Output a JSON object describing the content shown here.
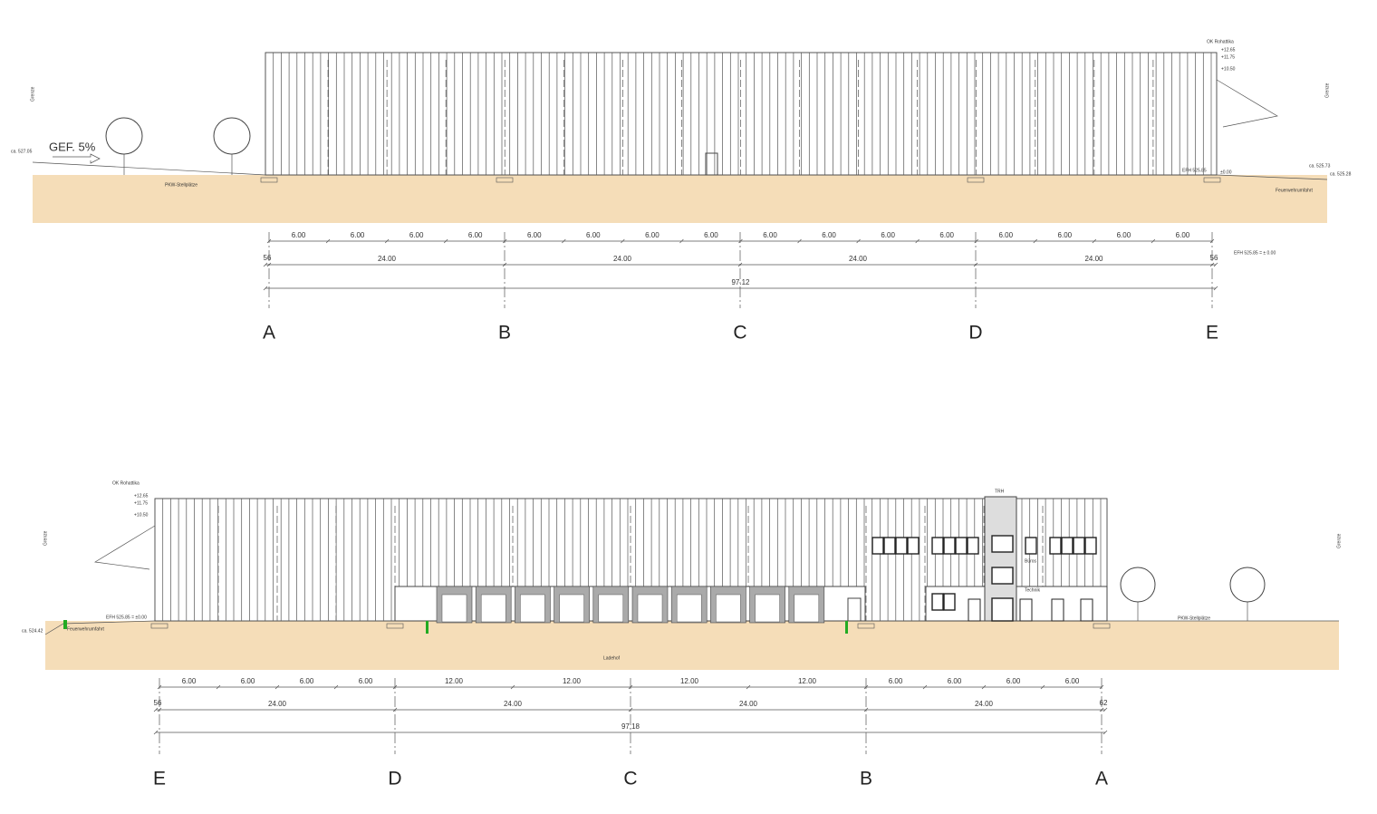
{
  "top": {
    "grenze_left": "Grenze",
    "grenze_right": "Grenze",
    "level_left": "ca. 527.05",
    "slope": "GEF. 5%",
    "parking": "PKW-Stellplätze",
    "roof_label": "OK Rohattika",
    "levels": [
      "+12.65",
      "+11.75",
      "+10.50"
    ],
    "efh": "EFH 525.85",
    "zero": "±0.00",
    "level_right_1": "ca. 525.73",
    "level_right_2": "ca. 525.28",
    "fire_lane": "Feuerwehrumfahrt",
    "efh_note": "EFH 525.85 = ± 0.00",
    "dims": {
      "modules": [
        "6.00",
        "6.00",
        "6.00",
        "6.00",
        "6.00",
        "6.00",
        "6.00",
        "6.00",
        "6.00",
        "6.00",
        "6.00",
        "6.00",
        "6.00",
        "6.00",
        "6.00",
        "6.00"
      ],
      "offset_left": "56",
      "bays": [
        "24.00",
        "24.00",
        "24.00",
        "24.00"
      ],
      "offset_right": "56",
      "total": "97.12"
    },
    "axes": [
      "A",
      "B",
      "C",
      "D",
      "E"
    ]
  },
  "bottom": {
    "roof_label": "OK Rohattika",
    "levels": [
      "+12.65",
      "+11.75",
      "+10.50"
    ],
    "grenze_left": "Grenze",
    "grenze_right": "Grenze",
    "level_left": "ca. 524.42",
    "fire_lane": "Feuerwehrumfahrt",
    "efh": "EFH 525.85 = ±0.00",
    "stair": "TRH",
    "offices": "Büros",
    "technik": "Technik",
    "parking": "PKW-Stellplätze",
    "yard": "Ladehof",
    "dims": {
      "modules": [
        "6.00",
        "6.00",
        "6.00",
        "6.00",
        "12.00",
        "12.00",
        "12.00",
        "12.00",
        "6.00",
        "6.00",
        "6.00",
        "6.00"
      ],
      "offset_left": "56",
      "bays": [
        "24.00",
        "24.00",
        "24.00",
        "24.00"
      ],
      "offset_right": "62",
      "total": "97.18"
    },
    "axes": [
      "E",
      "D",
      "C",
      "B",
      "A"
    ]
  }
}
